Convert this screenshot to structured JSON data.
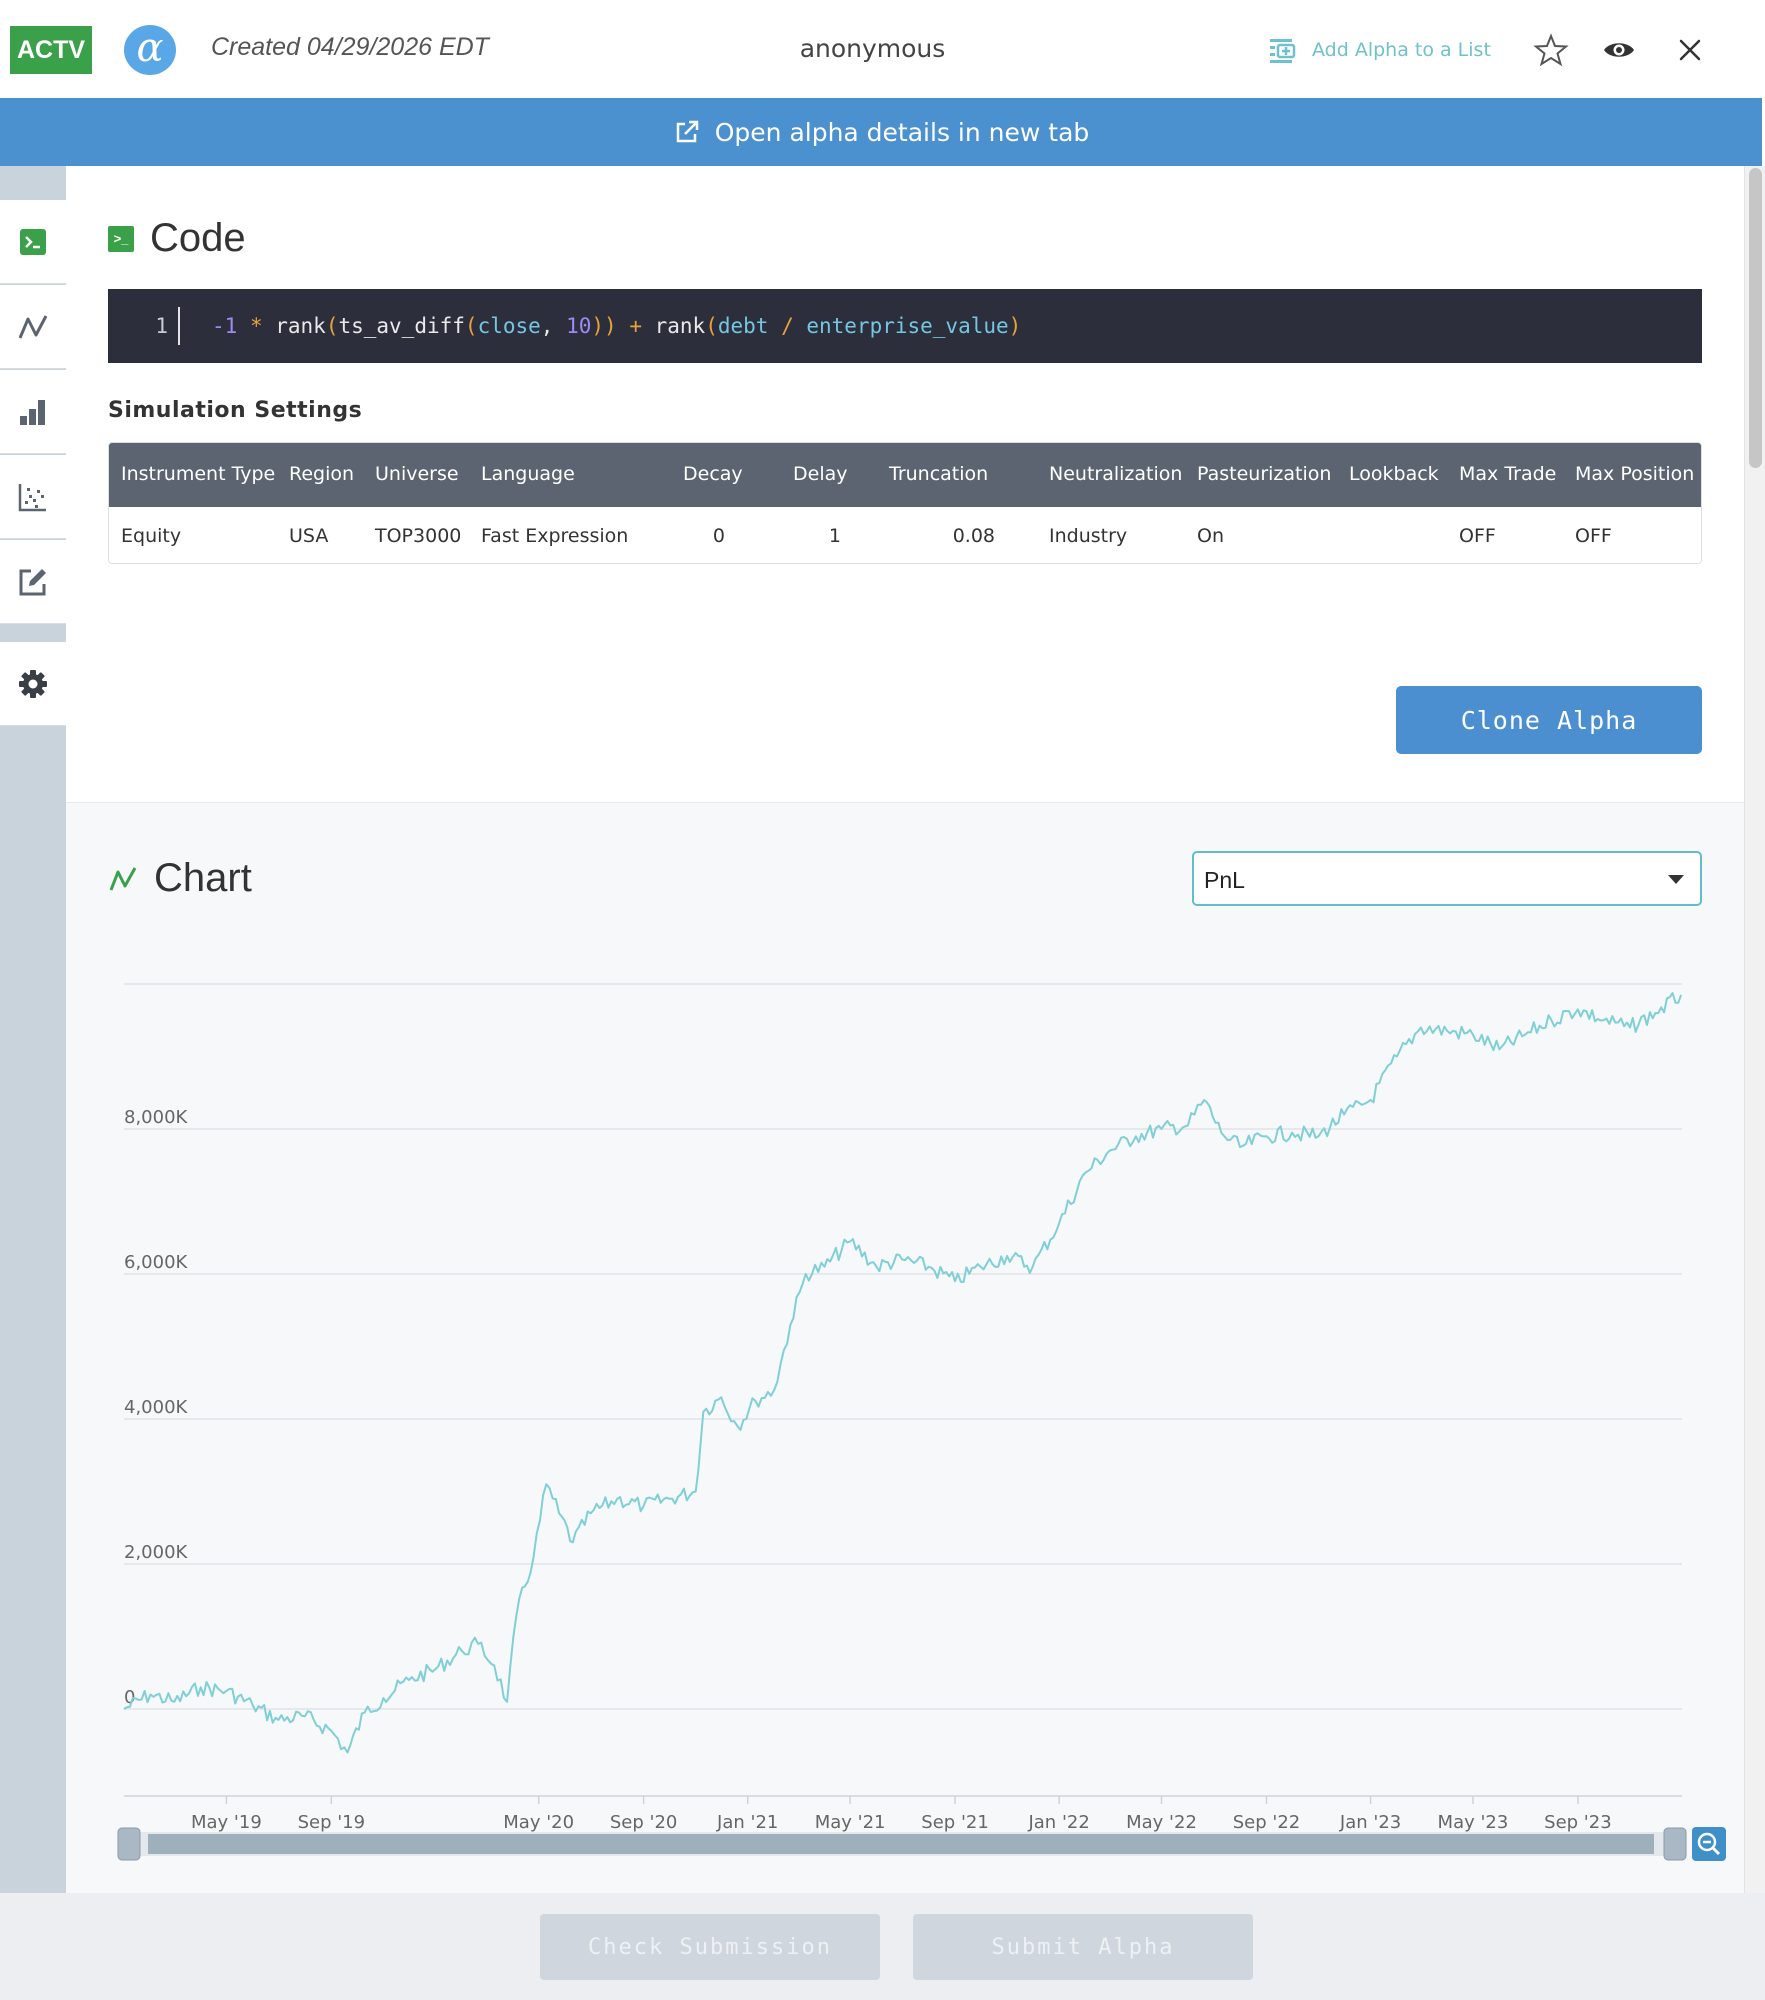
{
  "header": {
    "status_badge": "ACTV",
    "alpha_logo_glyph": "α",
    "created": "Created 04/29/2026 EDT",
    "owner": "anonymous",
    "add_to_list": "Add Alpha to a List",
    "icons": [
      "add-list-icon",
      "star-icon",
      "eye-icon",
      "close-icon"
    ]
  },
  "banner": {
    "label": "Open alpha details in new tab",
    "icon": "external-link-icon"
  },
  "sidebar": {
    "items": [
      {
        "name": "code",
        "icon": "terminal-icon"
      },
      {
        "name": "chart",
        "icon": "line-chart-icon"
      },
      {
        "name": "stats",
        "icon": "bar-chart-icon"
      },
      {
        "name": "correlation",
        "icon": "scatter-icon"
      },
      {
        "name": "notes",
        "icon": "edit-icon"
      },
      {
        "name": "settings",
        "icon": "gear-icon"
      }
    ]
  },
  "code": {
    "title": "Code",
    "line_number": "1",
    "tokens": [
      {
        "t": "-1",
        "c": "tk-num"
      },
      {
        "t": " * ",
        "c": "tk-op"
      },
      {
        "t": "rank",
        "c": "tk-fn"
      },
      {
        "t": "(",
        "c": "tk-op"
      },
      {
        "t": "ts_av_diff",
        "c": "tk-fn"
      },
      {
        "t": "(",
        "c": "tk-op"
      },
      {
        "t": "close",
        "c": "tk-kw"
      },
      {
        "t": ", ",
        "c": "tk-fn"
      },
      {
        "t": "10",
        "c": "tk-num"
      },
      {
        "t": "))",
        "c": "tk-op"
      },
      {
        "t": " + ",
        "c": "tk-op"
      },
      {
        "t": "rank",
        "c": "tk-fn"
      },
      {
        "t": "(",
        "c": "tk-op"
      },
      {
        "t": "debt",
        "c": "tk-kw"
      },
      {
        "t": " / ",
        "c": "tk-op"
      },
      {
        "t": "enterprise_value",
        "c": "tk-kw"
      },
      {
        "t": ")",
        "c": "tk-op"
      }
    ]
  },
  "simulation": {
    "title": "Simulation Settings",
    "columns": [
      "Instrument Type",
      "Region",
      "Universe",
      "Language",
      "Decay",
      "Delay",
      "Truncation",
      "Neutralization",
      "Pasteurization",
      "Lookback",
      "Max Trade",
      "Max Position"
    ],
    "values": [
      "Equity",
      "USA",
      "TOP3000",
      "Fast Expression",
      "0",
      "1",
      "0.08",
      "Industry",
      "On",
      "",
      "OFF",
      "OFF"
    ]
  },
  "clone_button": "Clone Alpha",
  "chart_section": {
    "title": "Chart",
    "selected_metric": "PnL"
  },
  "chart_data": {
    "type": "line",
    "title": "",
    "xlabel": "",
    "ylabel": "",
    "y_ticks": [
      "0",
      "2,000K",
      "4,000K",
      "6,000K",
      "8,000K"
    ],
    "x_ticks": [
      "May '19",
      "Sep '19",
      "May '20",
      "Sep '20",
      "Jan '21",
      "May '21",
      "Sep '21",
      "Jan '22",
      "May '22",
      "Sep '22",
      "Jan '23",
      "May '23",
      "Sep '23"
    ],
    "x_tick_dates": [
      "2019-05-01",
      "2019-09-01",
      "2020-05-01",
      "2020-09-01",
      "2021-01-01",
      "2021-05-01",
      "2021-09-01",
      "2022-01-01",
      "2022-05-01",
      "2022-09-01",
      "2023-01-01",
      "2023-05-01",
      "2023-09-01"
    ],
    "ylim": [
      -1200,
      10000
    ],
    "xlim": [
      "2019-01-01",
      "2024-01-01"
    ],
    "grid": true,
    "line_color": "#7fcfd6",
    "series": [
      {
        "points": [
          [
            "2019-01-01",
            0
          ],
          [
            "2019-02-01",
            200
          ],
          [
            "2019-03-01",
            100
          ],
          [
            "2019-04-01",
            300
          ],
          [
            "2019-05-01",
            250
          ],
          [
            "2019-06-01",
            50
          ],
          [
            "2019-07-01",
            -150
          ],
          [
            "2019-08-01",
            -100
          ],
          [
            "2019-09-01",
            -300
          ],
          [
            "2019-09-20",
            -600
          ],
          [
            "2019-10-10",
            -50
          ],
          [
            "2019-11-01",
            150
          ],
          [
            "2019-12-01",
            400
          ],
          [
            "2020-01-01",
            550
          ],
          [
            "2020-02-01",
            800
          ],
          [
            "2020-02-20",
            900
          ],
          [
            "2020-03-10",
            600
          ],
          [
            "2020-03-25",
            100
          ],
          [
            "2020-04-05",
            1300
          ],
          [
            "2020-04-25",
            2100
          ],
          [
            "2020-05-10",
            3100
          ],
          [
            "2020-05-25",
            2700
          ],
          [
            "2020-06-10",
            2300
          ],
          [
            "2020-07-01",
            2700
          ],
          [
            "2020-08-01",
            2900
          ],
          [
            "2020-09-01",
            2800
          ],
          [
            "2020-10-01",
            2900
          ],
          [
            "2020-11-01",
            3000
          ],
          [
            "2020-11-10",
            4100
          ],
          [
            "2020-12-01",
            4300
          ],
          [
            "2020-12-20",
            3900
          ],
          [
            "2021-01-10",
            4250
          ],
          [
            "2021-02-01",
            4400
          ],
          [
            "2021-02-20",
            5300
          ],
          [
            "2021-03-10",
            6000
          ],
          [
            "2021-04-01",
            6100
          ],
          [
            "2021-05-01",
            6450
          ],
          [
            "2021-06-01",
            6100
          ],
          [
            "2021-07-01",
            6200
          ],
          [
            "2021-08-01",
            6100
          ],
          [
            "2021-09-01",
            5900
          ],
          [
            "2021-10-01",
            6100
          ],
          [
            "2021-11-01",
            6250
          ],
          [
            "2021-12-01",
            6100
          ],
          [
            "2022-01-01",
            6700
          ],
          [
            "2022-02-01",
            7400
          ],
          [
            "2022-03-01",
            7700
          ],
          [
            "2022-04-01",
            7900
          ],
          [
            "2022-05-01",
            8000
          ],
          [
            "2022-06-01",
            8050
          ],
          [
            "2022-06-20",
            8400
          ],
          [
            "2022-07-10",
            7950
          ],
          [
            "2022-08-01",
            7750
          ],
          [
            "2022-09-01",
            7900
          ],
          [
            "2022-10-01",
            7950
          ],
          [
            "2022-11-01",
            7900
          ],
          [
            "2022-12-01",
            8200
          ],
          [
            "2023-01-01",
            8400
          ],
          [
            "2023-02-01",
            9000
          ],
          [
            "2023-03-01",
            9400
          ],
          [
            "2023-04-01",
            9350
          ],
          [
            "2023-05-01",
            9300
          ],
          [
            "2023-06-01",
            9100
          ],
          [
            "2023-07-01",
            9300
          ],
          [
            "2023-08-01",
            9500
          ],
          [
            "2023-09-01",
            9650
          ],
          [
            "2023-10-01",
            9500
          ],
          [
            "2023-11-01",
            9400
          ],
          [
            "2023-12-01",
            9600
          ],
          [
            "2023-12-31",
            9850
          ]
        ]
      }
    ]
  },
  "footer": {
    "check_button": "Check Submission",
    "submit_button": "Submit Alpha"
  }
}
